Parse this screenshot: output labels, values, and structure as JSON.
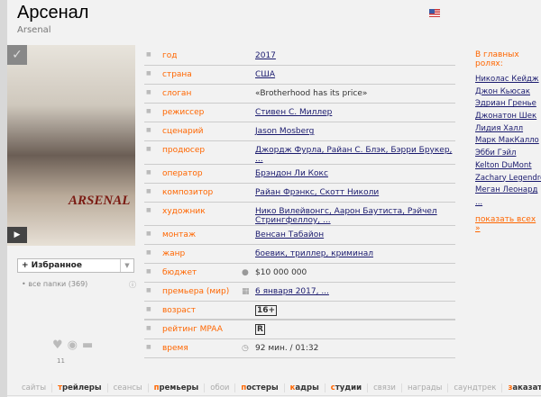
{
  "title": "Арсенал",
  "original_title": "Arsenal",
  "poster": {
    "text": "ARSENAL"
  },
  "favorites": {
    "label": "+ Избранное",
    "folders": "• все папки (369)",
    "likes": "11"
  },
  "rows": [
    {
      "label": "год",
      "value": "2017",
      "link": true
    },
    {
      "label": "страна",
      "value": "США",
      "link": true
    },
    {
      "label": "слоган",
      "value": "«Brotherhood has its price»",
      "link": false
    },
    {
      "label": "режиссер",
      "value": "Стивен С. Миллер",
      "link": true
    },
    {
      "label": "сценарий",
      "value": "Jason Mosberg",
      "link": true
    },
    {
      "label": "продюсер",
      "value": "Джордж Фурла, Райан С. Блэк, Бэрри Брукер, ...",
      "link": true
    },
    {
      "label": "оператор",
      "value": "Брэндон Ли Кокс",
      "link": true
    },
    {
      "label": "композитор",
      "value": "Райан Фрэнкс, Скотт Николи",
      "link": true
    },
    {
      "label": "художник",
      "value": "Нико Вилейвонгс, Аарон Баутиста, Рэйчел Стрингфеллоу, ...",
      "link": true
    },
    {
      "label": "монтаж",
      "value": "Венсан Табайон",
      "link": true
    },
    {
      "label": "жанр",
      "value": "боевик, триллер, криминал",
      "link": true
    },
    {
      "label": "бюджет",
      "value": "$10 000 000",
      "link": false,
      "icon": "coins-icon"
    },
    {
      "label": "премьера (мир)",
      "value": "6 января 2017, ...",
      "link": true,
      "icon": "calendar-icon"
    },
    {
      "label": "возраст",
      "value": "16+",
      "link": false
    },
    {
      "label": "рейтинг MPAA",
      "value": "R",
      "link": false
    },
    {
      "label": "время",
      "value": "92 мин. / 01:32",
      "link": false,
      "icon": "clock-icon"
    }
  ],
  "cast": {
    "heading": "В главных ролях:",
    "actors": [
      "Николас Кейдж",
      "Джон Кьюсак",
      "Эдриан Гренье",
      "Джонатон Шек",
      "Лидия Халл",
      "Марк МакКалло",
      "Эбби Гэйл",
      "Kelton DuMont",
      "Zachary Legendre",
      "Меган Леонард",
      "..."
    ],
    "show_all": "показать всех »"
  },
  "tabs": [
    {
      "label": "сайты",
      "active": false
    },
    {
      "label": "трейлеры",
      "active": true
    },
    {
      "label": "сеансы",
      "active": false
    },
    {
      "label": "премьеры",
      "active": true
    },
    {
      "label": "обои",
      "active": false
    },
    {
      "label": "постеры",
      "active": true
    },
    {
      "label": "кадры",
      "active": true
    },
    {
      "label": "студии",
      "active": true
    },
    {
      "label": "связи",
      "active": false
    },
    {
      "label": "награды",
      "active": false
    },
    {
      "label": "саундтрек",
      "active": false
    },
    {
      "label": "заказать!",
      "active": true
    }
  ],
  "colors": {
    "accent": "#ff6600",
    "link": "#1a1a6e"
  }
}
